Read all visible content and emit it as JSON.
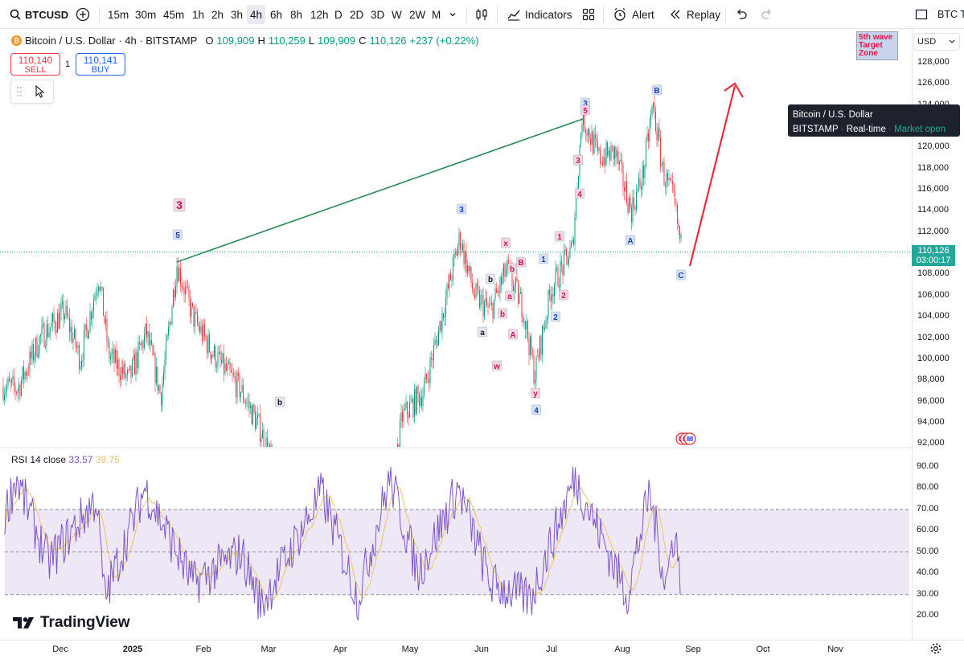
{
  "toolbar": {
    "symbol": "BTCUSD",
    "timeframes": [
      "15m",
      "30m",
      "45m",
      "1h",
      "2h",
      "3h",
      "4h",
      "6h",
      "8h",
      "12h",
      "D",
      "2D",
      "3D",
      "W",
      "2W",
      "M"
    ],
    "active_timeframe": "4h",
    "indicators_label": "Indicators",
    "alert_label": "Alert",
    "replay_label": "Replay",
    "right_symbol": "BTC T"
  },
  "legend": {
    "title": "Bitcoin / U.S. Dollar · 4h · BITSTAMP",
    "o_label": "O",
    "o": "109,909",
    "h_label": "H",
    "h": "110,259",
    "l_label": "L",
    "l": "109,909",
    "c_label": "C",
    "c": "110,126",
    "change": "+237 (+0.22%)"
  },
  "trade": {
    "sell_price": "110,140",
    "sell_label": "SELL",
    "spread": "1",
    "buy_price": "110,141",
    "buy_label": "BUY"
  },
  "price_axis": {
    "currency": "USD",
    "labels": [
      "128,000",
      "126,000",
      "124,000",
      "122,000",
      "120,000",
      "118,000",
      "116,000",
      "114,000",
      "112,000",
      "110,000",
      "108,000",
      "106,000",
      "104,000",
      "102,000",
      "100,000",
      "98,000",
      "96,000",
      "94,000",
      "92,000"
    ],
    "current_price": "110,126",
    "countdown": "03:00:17"
  },
  "tooltip": {
    "line1": "Bitcoin / U.S. Dollar",
    "exchange": "BITSTAMP",
    "feed": "Real-time",
    "status": "Market open"
  },
  "target_zone": {
    "line1": "5th wave",
    "line2": "Target",
    "line3": "Zone"
  },
  "wave_labels": {
    "red_3_big": "3",
    "blue_5": "5",
    "b_dark_feb": "b",
    "blue_3_may": "3",
    "a_jun": "a",
    "b_jun": "b",
    "x_jun": "x",
    "w_jun": "w",
    "b_pink_1": "b",
    "B_pink": "B",
    "A_pink": "A",
    "a_pink": "a",
    "b_pink_2": "b",
    "y_jun": "y",
    "blue_4": "4",
    "blue_1": "1",
    "pink_1": "1",
    "pink_2": "2",
    "blue_2": "2",
    "pink_3": "3",
    "pink_4": "4",
    "pink_5": "5",
    "blue_3_jul": "3",
    "A_aug": "A",
    "B_aug": "B",
    "C_aug": "C"
  },
  "rsi": {
    "title": "RSI 14 close",
    "value1": "33.57",
    "value2": "39.75",
    "labels": [
      "90.00",
      "80.00",
      "70.00",
      "60.00",
      "50.00",
      "40.00",
      "30.00",
      "20.00"
    ]
  },
  "time_axis": {
    "labels": [
      "Dec",
      "2025",
      "Feb",
      "Mar",
      "Apr",
      "May",
      "Jun",
      "Jul",
      "Aug",
      "Sep",
      "Oct",
      "Nov"
    ]
  },
  "brand": "TradingView",
  "colors": {
    "up": "#089981",
    "down": "#f23645",
    "trendline": "#2e8b57",
    "arrow": "#e0303f",
    "rsi_line": "#7e57c2",
    "rsi_ma": "#e9c46a",
    "rsi_band": "#ede7f6",
    "wave_blue_bg": "#d6e4fb",
    "wave_pink_bg": "#f8d7e0"
  }
}
